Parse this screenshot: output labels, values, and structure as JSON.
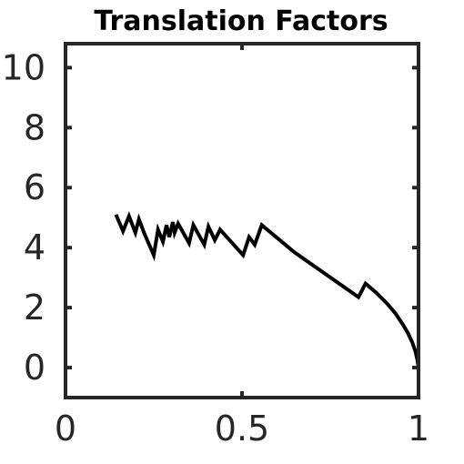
{
  "chart_data": {
    "type": "line",
    "title": "Translation Factors",
    "xlabel": "",
    "ylabel": "",
    "xlim": [
      0,
      1
    ],
    "ylim": [
      -1,
      10.8
    ],
    "xticks": [
      0,
      0.5,
      1
    ],
    "xtick_labels": [
      "0",
      "0.5",
      "1"
    ],
    "yticks": [
      0,
      2,
      4,
      6,
      8,
      10
    ],
    "ytick_labels": [
      "0",
      "2",
      "4",
      "6",
      "8",
      "10"
    ],
    "grid": false,
    "line_color": "#000000",
    "axis_color": "#262626",
    "series": [
      {
        "x": [
          0.143,
          0.163,
          0.18,
          0.198,
          0.208,
          0.224,
          0.25,
          0.262,
          0.276,
          0.286,
          0.294,
          0.304,
          0.309,
          0.319,
          0.35,
          0.362,
          0.393,
          0.405,
          0.423,
          0.438,
          0.503,
          0.52,
          0.536,
          0.556,
          0.648,
          0.83,
          0.85,
          0.88,
          0.91,
          0.935,
          0.955,
          0.97,
          0.982,
          0.991,
          0.997,
          1.0
        ],
        "y": [
          5.1,
          4.55,
          5.05,
          4.5,
          4.95,
          4.45,
          3.75,
          4.6,
          4.2,
          4.75,
          4.35,
          4.85,
          4.5,
          4.8,
          4.15,
          4.75,
          4.1,
          4.7,
          4.25,
          4.6,
          3.75,
          4.35,
          4.1,
          4.75,
          3.85,
          2.35,
          2.8,
          2.5,
          2.15,
          1.8,
          1.45,
          1.15,
          0.85,
          0.55,
          0.25,
          0.0
        ]
      }
    ]
  }
}
